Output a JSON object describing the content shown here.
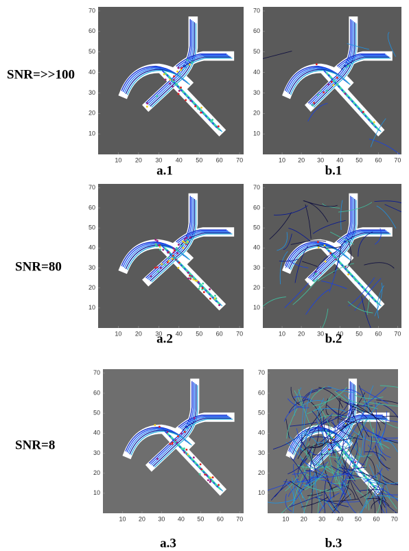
{
  "rows": [
    {
      "label": "SNR=>>100",
      "panels": [
        {
          "caption": "a.1",
          "xlim": [
            0,
            72
          ],
          "ylim": [
            0,
            72
          ],
          "xticks": [
            10,
            20,
            30,
            40,
            50,
            60,
            70
          ],
          "yticks": [
            10,
            20,
            30,
            40,
            50,
            60,
            70
          ]
        },
        {
          "caption": "b.1",
          "xlim": [
            0,
            72
          ],
          "ylim": [
            0,
            72
          ],
          "xticks": [
            10,
            20,
            30,
            40,
            50,
            60,
            70
          ],
          "yticks": [
            10,
            20,
            30,
            40,
            50,
            60,
            70
          ]
        }
      ]
    },
    {
      "label": "SNR=80",
      "panels": [
        {
          "caption": "a.2",
          "xlim": [
            0,
            72
          ],
          "ylim": [
            0,
            72
          ],
          "xticks": [
            10,
            20,
            30,
            40,
            50,
            60,
            70
          ],
          "yticks": [
            10,
            20,
            30,
            40,
            50,
            60,
            70
          ]
        },
        {
          "caption": "b.2",
          "xlim": [
            0,
            72
          ],
          "ylim": [
            0,
            72
          ],
          "xticks": [
            10,
            20,
            30,
            40,
            50,
            60,
            70
          ],
          "yticks": [
            10,
            20,
            30,
            40,
            50,
            60,
            70
          ]
        }
      ]
    },
    {
      "label": "SNR=8",
      "panels": [
        {
          "caption": "a.3",
          "xlim": [
            0,
            72
          ],
          "ylim": [
            0,
            72
          ],
          "xticks": [
            10,
            20,
            30,
            40,
            50,
            60,
            70
          ],
          "yticks": [
            10,
            20,
            30,
            40,
            50,
            60,
            70
          ]
        },
        {
          "caption": "b.3",
          "xlim": [
            0,
            72
          ],
          "ylim": [
            0,
            72
          ],
          "xticks": [
            10,
            20,
            30,
            40,
            50,
            60,
            70
          ],
          "yticks": [
            10,
            20,
            30,
            40,
            50,
            60,
            70
          ]
        }
      ]
    }
  ]
}
